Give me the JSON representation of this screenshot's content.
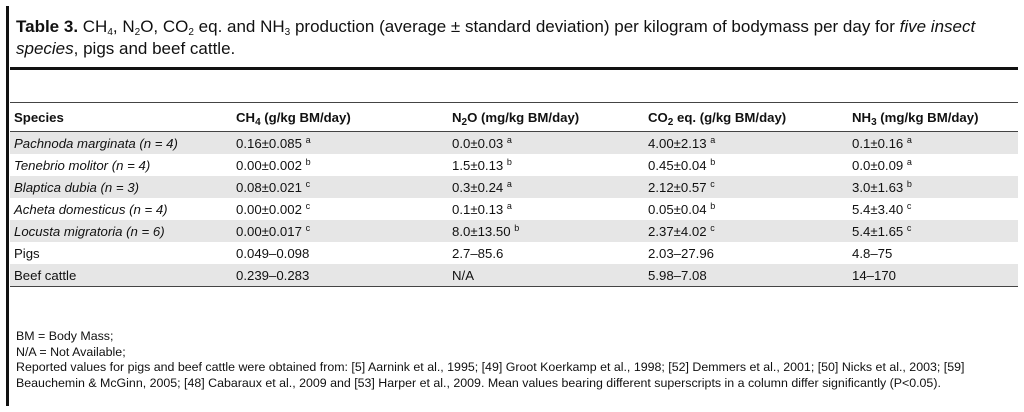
{
  "caption": {
    "label": "Table 3.",
    "ch4_ch": "CH",
    "ch4_sub": "4",
    "sep1": ", ",
    "n2o_n": "N",
    "n2o_sub": "2",
    "n2o_o": "O, ",
    "co2_co": "CO",
    "co2_sub": "2",
    "co2_rest": " eq. and ",
    "nh3_nh": "NH",
    "nh3_sub": "3",
    "rest": " production (average ± standard deviation) per kilogram of bodymass per day for ",
    "italic": "five insect species",
    "tail": ", pigs and beef cattle."
  },
  "table": {
    "headers": [
      {
        "main": "Species",
        "sub": "",
        "rest": ""
      },
      {
        "main": "CH",
        "sub": "4",
        "rest": " (g/kg BM/day)"
      },
      {
        "main": "N",
        "sub": "2",
        "rest": "O (mg/kg BM/day)"
      },
      {
        "main": "CO",
        "sub": "2",
        "rest": " eq. (g/kg BM/day)"
      },
      {
        "main": "NH",
        "sub": "3",
        "rest": " (mg/kg BM/day)"
      }
    ],
    "rows": [
      {
        "species": "Pachnoda marginata (n = 4)",
        "italic": true,
        "cells": [
          {
            "v": "0.16±0.085",
            "s": "a"
          },
          {
            "v": "0.0±0.03",
            "s": "a"
          },
          {
            "v": "4.00±2.13",
            "s": "a"
          },
          {
            "v": "0.1±0.16",
            "s": "a"
          }
        ]
      },
      {
        "species": "Tenebrio molitor (n = 4)",
        "italic": true,
        "cells": [
          {
            "v": "0.00±0.002",
            "s": "b"
          },
          {
            "v": "1.5±0.13",
            "s": "b"
          },
          {
            "v": "0.45±0.04",
            "s": "b"
          },
          {
            "v": "0.0±0.09",
            "s": "a"
          }
        ]
      },
      {
        "species": "Blaptica dubia (n = 3)",
        "italic": true,
        "cells": [
          {
            "v": "0.08±0.021",
            "s": "c"
          },
          {
            "v": "0.3±0.24",
            "s": "a"
          },
          {
            "v": "2.12±0.57",
            "s": "c"
          },
          {
            "v": "3.0±1.63",
            "s": "b"
          }
        ]
      },
      {
        "species": "Acheta domesticus (n = 4)",
        "italic": true,
        "cells": [
          {
            "v": "0.00±0.002",
            "s": "c"
          },
          {
            "v": "0.1±0.13",
            "s": "a"
          },
          {
            "v": "0.05±0.04",
            "s": "b"
          },
          {
            "v": "5.4±3.40",
            "s": "c"
          }
        ]
      },
      {
        "species": "Locusta migratoria (n = 6)",
        "italic": true,
        "cells": [
          {
            "v": "0.00±0.017",
            "s": "c"
          },
          {
            "v": "8.0±13.50",
            "s": "b"
          },
          {
            "v": "2.37±4.02",
            "s": "c"
          },
          {
            "v": "5.4±1.65",
            "s": "c"
          }
        ]
      },
      {
        "species": "Pigs",
        "italic": false,
        "cells": [
          {
            "v": "0.049–0.098",
            "s": ""
          },
          {
            "v": "2.7–85.6",
            "s": ""
          },
          {
            "v": "2.03–27.96",
            "s": ""
          },
          {
            "v": "4.8–75",
            "s": ""
          }
        ]
      },
      {
        "species": "Beef cattle",
        "italic": false,
        "cells": [
          {
            "v": "0.239–0.283",
            "s": ""
          },
          {
            "v": "N/A",
            "s": ""
          },
          {
            "v": "5.98–7.08",
            "s": ""
          },
          {
            "v": "14–170",
            "s": ""
          }
        ]
      }
    ]
  },
  "notes": {
    "line1": "BM = Body Mass;",
    "line2": "N/A = Not Available;",
    "line3": "Reported values for pigs and beef cattle were obtained from: [5] Aarnink et al., 1995; [49] Groot Koerkamp et al., 1998; [52] Demmers et al., 2001; [50] Nicks et al., 2003; [59] Beauchemin & McGinn, 2005; [48] Cabaraux et al., 2009 and [53] Harper et al., 2009. Mean values bearing different superscripts in a column differ significantly (P<0.05)."
  }
}
